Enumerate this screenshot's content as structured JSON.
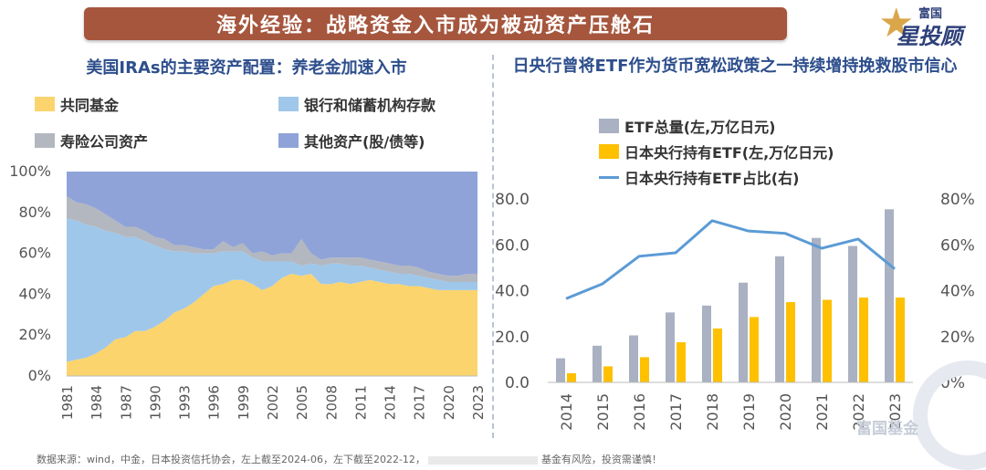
{
  "banner": {
    "title": "海外经验：战略资金入市成为被动资产压舱石"
  },
  "logo": {
    "line1": "富国",
    "line2": "星投顾"
  },
  "watermark": "富国基金",
  "source": "数据来源：wind，中金，日本投资信托协会，左上截至2024-06，左下截至2022-12，",
  "source_tail": "基金有风险，投资需谨慎！",
  "colors": {
    "banner": "#a5563d",
    "title": "#2d4e8c"
  },
  "chart_data": [
    {
      "type": "area",
      "title": "美国IRAs的主要资产配置：养老金加速入市",
      "stacked": true,
      "legend": [
        {
          "name": "共同基金",
          "color": "#fbd46d"
        },
        {
          "name": "银行和储蓄机构存款",
          "color": "#9fc7ea"
        },
        {
          "name": "寿险公司资产",
          "color": "#b3b7bf"
        },
        {
          "name": "其他资产(股/债等)",
          "color": "#8fa3d8"
        }
      ],
      "x": [
        1981,
        1982,
        1983,
        1984,
        1985,
        1986,
        1987,
        1988,
        1989,
        1990,
        1991,
        1992,
        1993,
        1994,
        1995,
        1996,
        1997,
        1998,
        1999,
        2000,
        2001,
        2002,
        2003,
        2004,
        2005,
        2006,
        2007,
        2008,
        2009,
        2010,
        2011,
        2012,
        2013,
        2014,
        2015,
        2016,
        2017,
        2018,
        2019,
        2020,
        2021,
        2022,
        2023
      ],
      "xticks": [
        "1981",
        "1984",
        "1987",
        "1990",
        "1993",
        "1996",
        "1999",
        "2002",
        "2005",
        "2008",
        "2011",
        "2014",
        "2017",
        "2020",
        "2023"
      ],
      "ylim": [
        0,
        100
      ],
      "yticks": [
        "0%",
        "20%",
        "40%",
        "60%",
        "80%",
        "100%"
      ],
      "series": [
        {
          "name": "共同基金",
          "values": [
            7,
            8,
            9,
            11,
            14,
            18,
            19,
            22,
            22,
            24,
            27,
            31,
            33,
            36,
            40,
            44,
            45,
            47,
            47,
            45,
            42,
            44,
            48,
            50,
            49,
            50,
            45,
            45,
            46,
            45,
            46,
            47,
            46,
            45,
            45,
            44,
            44,
            43,
            42,
            42,
            42,
            42,
            42
          ]
        },
        {
          "name": "银行和储蓄机构存款",
          "values": [
            70,
            68,
            65,
            62,
            57,
            52,
            49,
            46,
            44,
            40,
            35,
            30,
            28,
            24,
            20,
            16,
            16,
            14,
            14,
            13,
            14,
            12,
            8,
            6,
            5,
            5,
            9,
            10,
            9,
            9,
            8,
            6,
            6,
            6,
            5,
            6,
            5,
            5,
            5,
            4,
            4,
            4,
            4
          ]
        },
        {
          "name": "寿险公司资产",
          "values": [
            11,
            9,
            10,
            9,
            8,
            6,
            5,
            5,
            5,
            4,
            5,
            3,
            3,
            3,
            2,
            2,
            5,
            2,
            4,
            2,
            5,
            3,
            4,
            4,
            13,
            5,
            3,
            3,
            3,
            4,
            4,
            4,
            4,
            4,
            4,
            4,
            4,
            3,
            3,
            3,
            3,
            4,
            4
          ]
        },
        {
          "name": "其他资产(股/债等)",
          "values": [
            12,
            15,
            16,
            18,
            21,
            24,
            27,
            27,
            29,
            32,
            33,
            36,
            36,
            37,
            38,
            38,
            34,
            37,
            35,
            40,
            39,
            41,
            40,
            40,
            33,
            40,
            43,
            42,
            42,
            42,
            42,
            43,
            44,
            45,
            46,
            46,
            47,
            49,
            50,
            51,
            51,
            50,
            50
          ]
        }
      ]
    },
    {
      "type": "bar",
      "title": "日央行曾将ETF作为货币宽松政策之一持续增持挽救股市信心",
      "categories": [
        "2014",
        "2015",
        "2016",
        "2017",
        "2018",
        "2019",
        "2020",
        "2021",
        "2022",
        "2023"
      ],
      "ylim_left": [
        0,
        80
      ],
      "yticks_left": [
        "0.0",
        "20.0",
        "40.0",
        "60.0",
        "80.0"
      ],
      "ylim_right": [
        0,
        80
      ],
      "yticks_right": [
        "0%",
        "20%",
        "40%",
        "60%",
        "80%"
      ],
      "series": [
        {
          "name": "ETF总量(左,万亿日元)",
          "type": "bar",
          "axis": "left",
          "color": "#a9b1c2",
          "values": [
            10.5,
            16,
            20.5,
            30.5,
            33.5,
            43.5,
            55,
            63,
            59.5,
            75.5
          ]
        },
        {
          "name": "日本央行持有ETF(左,万亿日元)",
          "type": "bar",
          "axis": "left",
          "color": "#ffc000",
          "values": [
            4,
            7,
            11,
            17.5,
            23.5,
            28.5,
            35,
            36,
            37,
            37
          ]
        },
        {
          "name": "日本央行持有ETF占比(右)",
          "type": "line",
          "axis": "right",
          "color": "#5b9bd5",
          "values": [
            36.5,
            43,
            55,
            56.5,
            70.5,
            66,
            65,
            58.5,
            62.5,
            49.5
          ]
        }
      ]
    }
  ]
}
